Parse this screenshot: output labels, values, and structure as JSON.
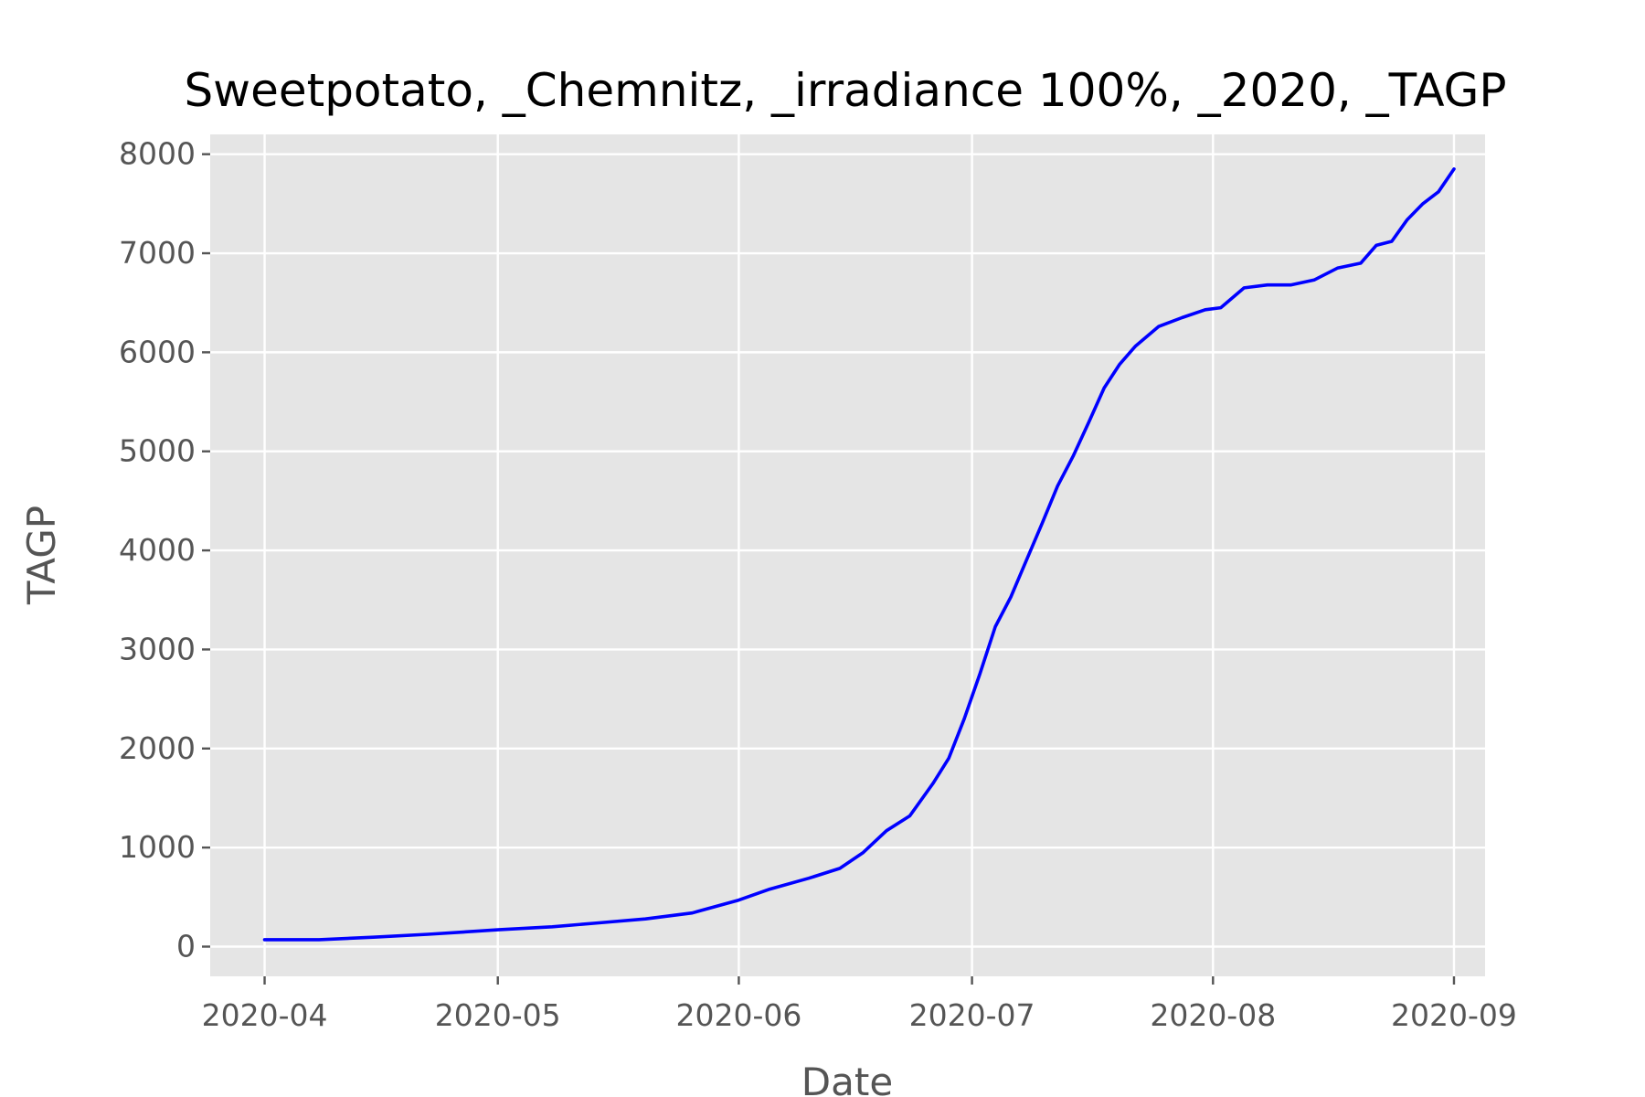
{
  "chart_data": {
    "type": "line",
    "title": "Sweetpotato, _Chemnitz, _irradiance 100%, _2020, _TAGP",
    "xlabel": "Date",
    "ylabel": "TAGP",
    "x_axis_type": "date",
    "xlim": [
      "2020-03-25",
      "2020-09-05"
    ],
    "ylim": [
      -300,
      8200
    ],
    "x_ticks": [
      "2020-04-01",
      "2020-05-01",
      "2020-06-01",
      "2020-07-01",
      "2020-08-01",
      "2020-09-01"
    ],
    "x_tick_labels": [
      "2020-04",
      "2020-05",
      "2020-06",
      "2020-07",
      "2020-08",
      "2020-09"
    ],
    "y_ticks": [
      0,
      1000,
      2000,
      3000,
      4000,
      5000,
      6000,
      7000,
      8000
    ],
    "y_tick_labels": [
      "0",
      "1000",
      "2000",
      "3000",
      "4000",
      "5000",
      "6000",
      "7000",
      "8000"
    ],
    "grid": true,
    "background_color": "#e5e5e5",
    "series": [
      {
        "color": "#0000ff",
        "points": [
          [
            "2020-04-01",
            70
          ],
          [
            "2020-04-08",
            70
          ],
          [
            "2020-04-15",
            95
          ],
          [
            "2020-04-22",
            125
          ],
          [
            "2020-05-01",
            170
          ],
          [
            "2020-05-08",
            200
          ],
          [
            "2020-05-14",
            240
          ],
          [
            "2020-05-20",
            280
          ],
          [
            "2020-05-26",
            340
          ],
          [
            "2020-06-01",
            470
          ],
          [
            "2020-06-05",
            580
          ],
          [
            "2020-06-10",
            690
          ],
          [
            "2020-06-14",
            790
          ],
          [
            "2020-06-17",
            950
          ],
          [
            "2020-06-20",
            1170
          ],
          [
            "2020-06-23",
            1320
          ],
          [
            "2020-06-26",
            1650
          ],
          [
            "2020-06-28",
            1900
          ],
          [
            "2020-06-30",
            2300
          ],
          [
            "2020-07-02",
            2750
          ],
          [
            "2020-07-04",
            3230
          ],
          [
            "2020-07-06",
            3530
          ],
          [
            "2020-07-08",
            3900
          ],
          [
            "2020-07-10",
            4270
          ],
          [
            "2020-07-12",
            4650
          ],
          [
            "2020-07-14",
            4950
          ],
          [
            "2020-07-16",
            5290
          ],
          [
            "2020-07-18",
            5640
          ],
          [
            "2020-07-20",
            5880
          ],
          [
            "2020-07-22",
            6060
          ],
          [
            "2020-07-25",
            6260
          ],
          [
            "2020-07-28",
            6350
          ],
          [
            "2020-07-31",
            6430
          ],
          [
            "2020-08-02",
            6450
          ],
          [
            "2020-08-05",
            6650
          ],
          [
            "2020-08-08",
            6680
          ],
          [
            "2020-08-11",
            6680
          ],
          [
            "2020-08-14",
            6730
          ],
          [
            "2020-08-17",
            6850
          ],
          [
            "2020-08-20",
            6900
          ],
          [
            "2020-08-22",
            7080
          ],
          [
            "2020-08-24",
            7120
          ],
          [
            "2020-08-26",
            7340
          ],
          [
            "2020-08-28",
            7500
          ],
          [
            "2020-08-30",
            7620
          ],
          [
            "2020-09-01",
            7850
          ]
        ]
      }
    ]
  }
}
